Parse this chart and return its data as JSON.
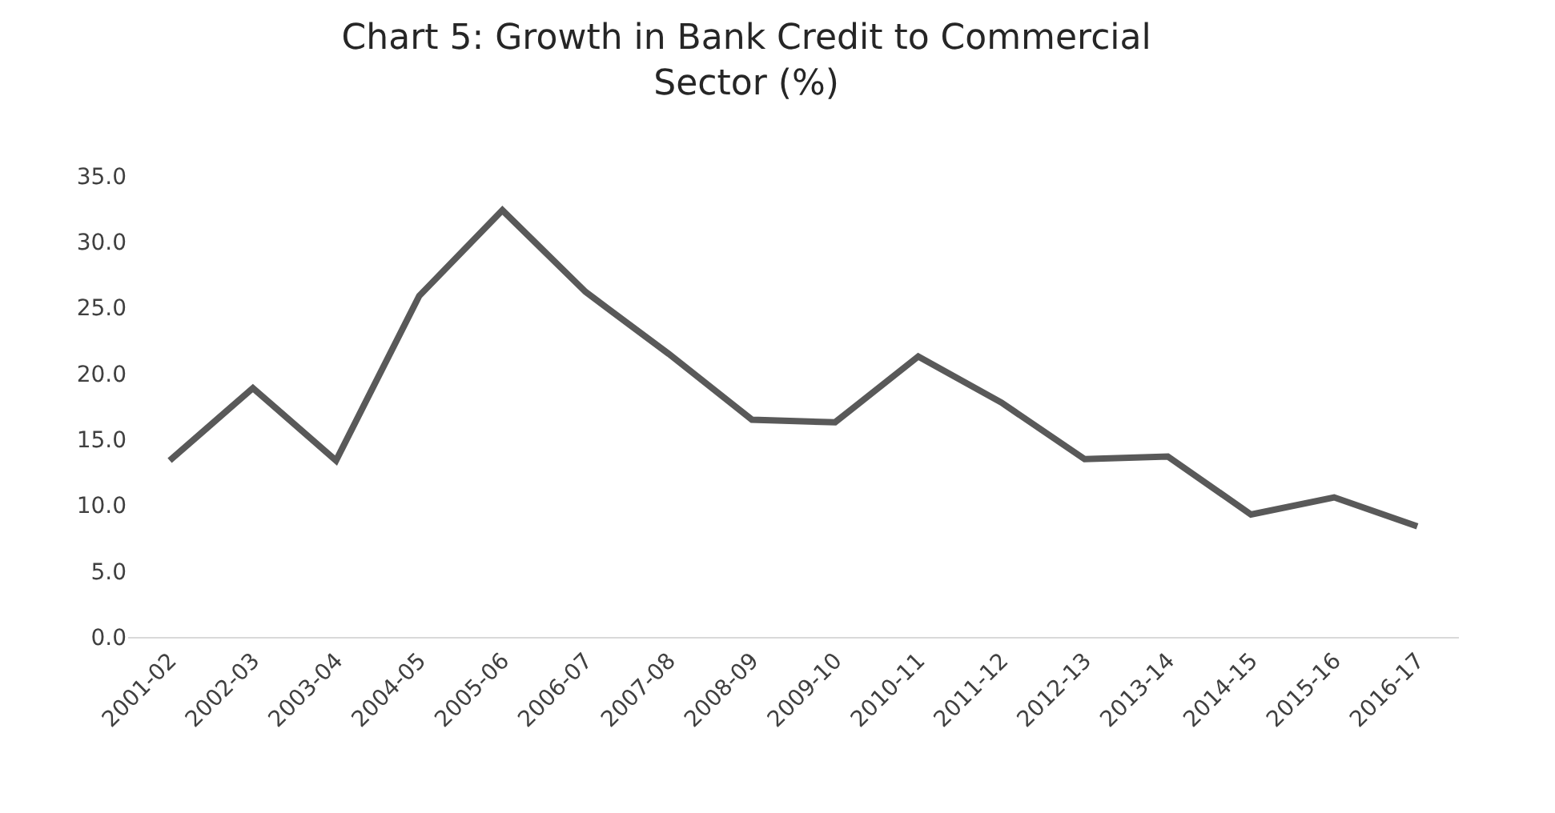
{
  "chart_data": {
    "type": "line",
    "title": "Chart 5: Growth in Bank Credit to Commercial\nSector (%)",
    "categories": [
      "2001-02",
      "2002-03",
      "2003-04",
      "2004-05",
      "2005-06",
      "2006-07",
      "2007-08",
      "2008-09",
      "2009-10",
      "2010-11",
      "2011-12",
      "2012-13",
      "2013-14",
      "2014-15",
      "2015-16",
      "2016-17"
    ],
    "series": [
      {
        "color": "#595959",
        "values": [
          13.4,
          18.9,
          13.4,
          25.9,
          32.4,
          26.2,
          21.5,
          16.5,
          16.3,
          21.3,
          17.8,
          13.5,
          13.7,
          9.3,
          10.6,
          8.4
        ]
      }
    ],
    "ylim": [
      0,
      35
    ],
    "yticks": [
      {
        "value": 0,
        "label": "0.0"
      },
      {
        "value": 5,
        "label": "5.0"
      },
      {
        "value": 10,
        "label": "10.0"
      },
      {
        "value": 15,
        "label": "15.0"
      },
      {
        "value": 20,
        "label": "20.0"
      },
      {
        "value": 25,
        "label": "25.0"
      },
      {
        "value": 30,
        "label": "30.0"
      },
      {
        "value": 35,
        "label": "35.0"
      }
    ],
    "legend": false,
    "marker": "none",
    "line_style": "solid"
  }
}
